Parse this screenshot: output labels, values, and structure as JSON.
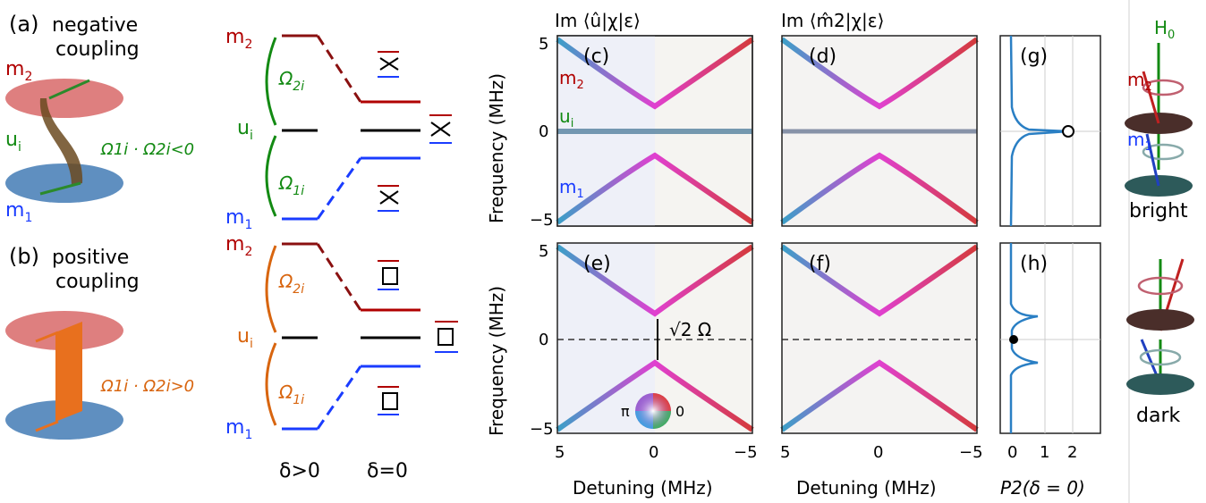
{
  "panel_a": {
    "label": "(a)",
    "title_line1": "negative",
    "title_line2": "coupling",
    "m2": "m",
    "m2_sub": "2",
    "ui": "u",
    "ui_sub": "i",
    "m1": "m",
    "m1_sub": "1",
    "condition": "Ω1i · Ω2i<0"
  },
  "panel_b": {
    "label": "(b)",
    "title_line1": "positive",
    "title_line2": "coupling",
    "condition": "Ω1i · Ω2i>0"
  },
  "levels_top": {
    "m2": "m",
    "m2_sub": "2",
    "ui": "u",
    "ui_sub": "i",
    "m1": "m",
    "m1_sub": "1",
    "omega2": "Ω",
    "omega2_sub": "2i",
    "omega1": "Ω",
    "omega1_sub": "1i"
  },
  "levels_bottom": {
    "m2": "m",
    "m2_sub": "2",
    "ui": "u",
    "ui_sub": "i",
    "m1": "m",
    "m1_sub": "1",
    "omega2": "Ω",
    "omega2_sub": "2i",
    "omega1": "Ω",
    "omega1_sub": "1i"
  },
  "detuning_labels": {
    "left": "δ>0",
    "right": "δ=0"
  },
  "spectra": {
    "col1_title": "Im ⟨û|χ|ε⟩",
    "col2_title": "Im ⟨m̂2|χ|ε⟩",
    "panel_labels": [
      "(c)",
      "(d)",
      "(e)",
      "(f)",
      "(g)",
      "(h)"
    ],
    "ylabel": "Frequency (MHz)",
    "xlabel": "Detuning (MHz)",
    "yticks": [
      "5",
      "0",
      "−5"
    ],
    "xticks": [
      "5",
      "0",
      "−5"
    ],
    "c_labels": {
      "m2": "m",
      "m2_sub": "2",
      "ui": "u",
      "ui_sub": "i",
      "m1": "m",
      "m1_sub": "1"
    },
    "gap_label": "√2 Ω",
    "phase_wheel": {
      "left": "π",
      "right": "0"
    }
  },
  "side": {
    "xlabel": "P2(δ = 0)",
    "xticks": [
      "0",
      "1",
      "2"
    ]
  },
  "right_panel": {
    "h0": "H",
    "h0_sub": "0",
    "m2": "m",
    "m2_sub": "2",
    "m1": "m",
    "m1_sub": "1",
    "bright": "bright",
    "dark": "dark"
  },
  "colors": {
    "red": "#b00000",
    "green": "#138a13",
    "blue": "#1a3cff",
    "orange": "#d8650f",
    "plot_blue": "#2a7fc4"
  }
}
